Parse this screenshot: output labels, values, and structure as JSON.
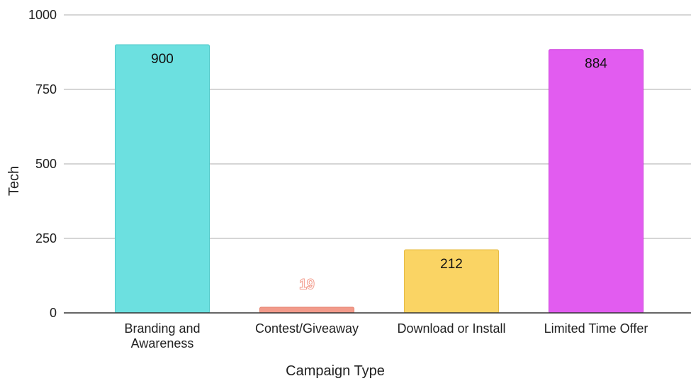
{
  "chart_data": {
    "type": "bar",
    "categories": [
      [
        "Branding and",
        "Awareness"
      ],
      [
        "Contest/Giveaway"
      ],
      [
        "Download or Install"
      ],
      [
        "Limited Time Offer"
      ]
    ],
    "values": [
      900,
      19,
      212,
      884
    ],
    "value_labels": [
      "900",
      "19",
      "212",
      "884"
    ],
    "colors": [
      "#6ce0e0",
      "#f29a8a",
      "#fad464",
      "#e25cf0"
    ],
    "bar_border_colors": [
      "#4fc9c9",
      "#e6836f",
      "#e6bb45",
      "#cc3edb"
    ],
    "xlabel": "Campaign Type",
    "ylabel": "Tech",
    "ylim": [
      0,
      1000
    ],
    "yticks": [
      0,
      250,
      500,
      750,
      1000
    ],
    "ytick_labels": [
      "0",
      "250",
      "500",
      "750",
      "1000"
    ],
    "grid": true,
    "legend": "none"
  }
}
